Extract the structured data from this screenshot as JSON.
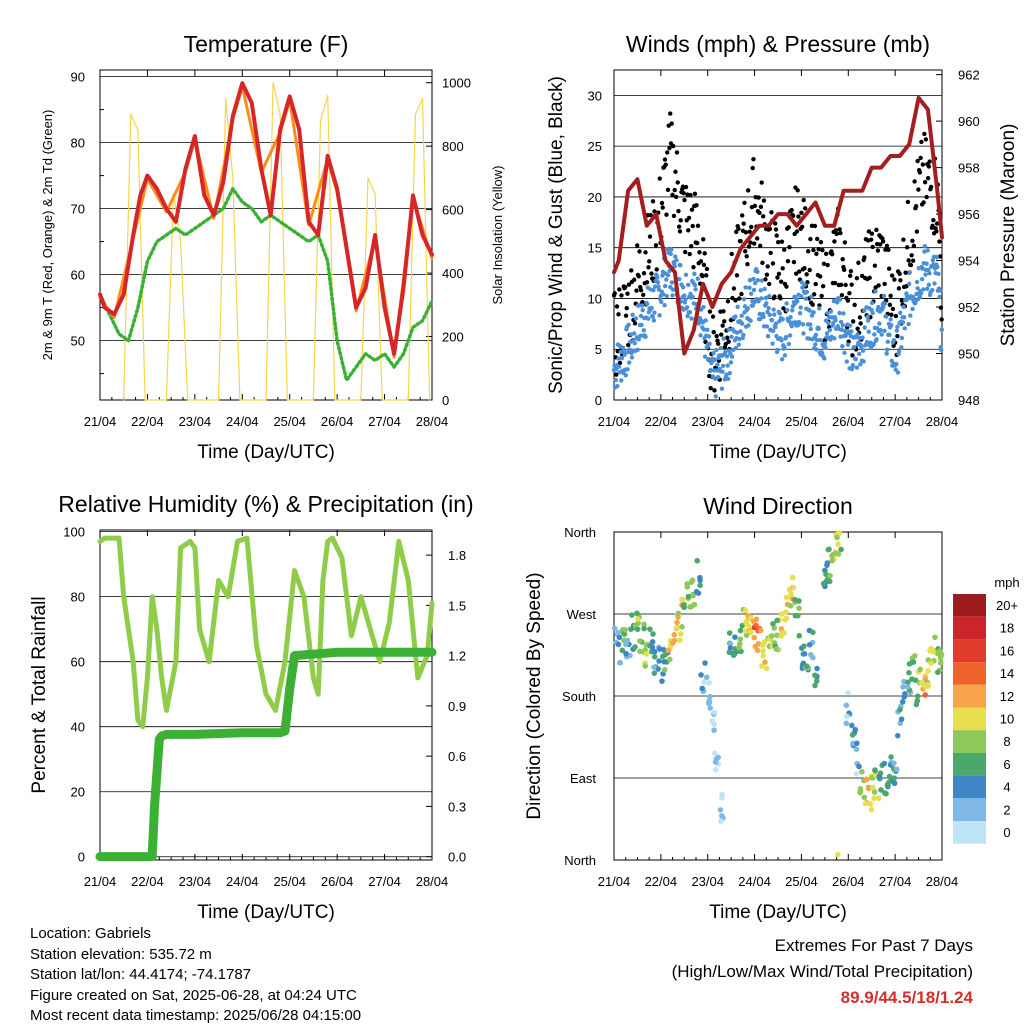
{
  "chart_data": [
    {
      "type": "line",
      "title": "Temperature (F)",
      "xlabel": "Time (Day/UTC)",
      "ylabel": "2m & 9m T (Red, Orange) & 2m Td (Green)",
      "y2label": "Solar Insolation (Yellow)",
      "x_ticks": [
        "21/04",
        "22/04",
        "23/04",
        "24/04",
        "25/04",
        "26/04",
        "27/04",
        "28/04"
      ],
      "ylim": [
        41,
        91
      ],
      "y_ticks": [
        50,
        60,
        70,
        80,
        90
      ],
      "y2lim": [
        0,
        1040
      ],
      "y2_ticks": [
        0,
        200,
        400,
        600,
        800,
        1000
      ],
      "grid": true,
      "series": [
        {
          "name": "2m T",
          "color": "#d62728",
          "x": [
            0,
            0.1,
            0.3,
            0.5,
            0.7,
            0.85,
            1.0,
            1.2,
            1.4,
            1.6,
            1.8,
            2.0,
            2.2,
            2.4,
            2.6,
            2.8,
            3.0,
            3.2,
            3.4,
            3.6,
            3.8,
            4.0,
            4.2,
            4.4,
            4.6,
            4.8,
            5.0,
            5.2,
            5.4,
            5.6,
            5.8,
            6.0,
            6.2,
            6.4,
            6.6,
            6.8,
            7.0
          ],
          "values": [
            57,
            55,
            54,
            57,
            66,
            72,
            75,
            73,
            70,
            68,
            76,
            81,
            72,
            69,
            74,
            84,
            89,
            86,
            76,
            69,
            82,
            87,
            82,
            68,
            66,
            78,
            73,
            64,
            55,
            58,
            66,
            55,
            48,
            58,
            72,
            66,
            63
          ]
        },
        {
          "name": "9m T",
          "color": "#ff8c1a",
          "x": [
            0,
            0.3,
            0.7,
            1.0,
            1.4,
            1.8,
            2.0,
            2.4,
            2.8,
            3.0,
            3.4,
            3.8,
            4.0,
            4.4,
            4.8,
            5.0,
            5.4,
            5.8,
            6.2,
            6.6,
            7.0
          ],
          "values": [
            56.5,
            53.5,
            65.5,
            74.5,
            69.5,
            75.5,
            80.5,
            68.5,
            83.5,
            88.5,
            75.5,
            81.5,
            86.5,
            67.5,
            77.5,
            72.5,
            54.5,
            65.5,
            47.5,
            71.5,
            62.5
          ]
        },
        {
          "name": "2m Td",
          "color": "#3cb034",
          "x": [
            0,
            0.2,
            0.4,
            0.6,
            0.8,
            1.0,
            1.2,
            1.4,
            1.6,
            1.8,
            2.0,
            2.2,
            2.4,
            2.6,
            2.8,
            3.0,
            3.2,
            3.4,
            3.6,
            3.8,
            4.0,
            4.2,
            4.4,
            4.6,
            4.8,
            5.0,
            5.2,
            5.4,
            5.6,
            5.8,
            6.0,
            6.2,
            6.4,
            6.6,
            6.8,
            7.0
          ],
          "values": [
            57,
            54,
            51,
            50,
            55,
            62,
            65,
            66,
            67,
            66,
            67,
            68,
            69,
            70,
            73,
            71,
            70,
            68,
            69,
            68,
            67,
            66,
            65,
            66,
            62,
            50,
            44,
            46,
            48,
            47,
            48,
            46,
            48,
            52,
            53,
            56
          ]
        },
        {
          "name": "Solar Insolation",
          "color": "#f5d54c",
          "axis": "y2",
          "x": [
            0.5,
            0.65,
            0.8,
            0.95,
            1.4,
            1.55,
            1.7,
            1.85,
            2.5,
            2.65,
            2.8,
            2.95,
            3.5,
            3.65,
            3.8,
            3.95,
            4.5,
            4.65,
            4.8,
            4.95,
            5.5,
            5.65,
            5.8,
            5.95,
            6.5,
            6.65,
            6.8,
            6.95
          ],
          "values": [
            0,
            900,
            850,
            0,
            0,
            650,
            500,
            0,
            0,
            950,
            700,
            0,
            0,
            1000,
            900,
            0,
            0,
            880,
            960,
            0,
            0,
            700,
            650,
            0,
            0,
            900,
            950,
            0
          ]
        }
      ]
    },
    {
      "type": "scatter",
      "title": "Winds (mph) & Pressure (mb)",
      "xlabel": "Time (Day/UTC)",
      "ylabel": "Sonic/Prop Wind & Gust (Blue, Black)",
      "y2label": "Station Pressure (Maroon)",
      "x_ticks": [
        "21/04",
        "22/04",
        "23/04",
        "24/04",
        "25/04",
        "26/04",
        "27/04",
        "28/04"
      ],
      "ylim": [
        0,
        32.5
      ],
      "y_ticks": [
        0,
        5,
        10,
        15,
        20,
        25,
        30
      ],
      "y2lim": [
        948,
        962.2
      ],
      "y2_ticks": [
        948,
        950,
        952,
        954,
        956,
        958,
        960,
        962
      ],
      "grid": true,
      "series": [
        {
          "name": "Gust",
          "color": "#000000",
          "x": [
            0,
            0.3,
            0.6,
            0.9,
            1.2,
            1.5,
            1.8,
            2.1,
            2.4,
            2.7,
            3.0,
            3.3,
            3.6,
            3.9,
            4.2,
            4.5,
            4.8,
            5.1,
            5.4,
            5.7,
            6.0,
            6.3,
            6.6,
            6.9,
            7.0
          ],
          "values": [
            6,
            9,
            13,
            16,
            24,
            18,
            16,
            4,
            8,
            14,
            20,
            15,
            12,
            17,
            14,
            10,
            15,
            8,
            12,
            14,
            8,
            16,
            22,
            20,
            10
          ]
        },
        {
          "name": "Wind",
          "color": "#4a90d9",
          "x": [
            0,
            0.3,
            0.6,
            0.9,
            1.2,
            1.5,
            1.8,
            2.1,
            2.4,
            2.7,
            3.0,
            3.3,
            3.6,
            3.9,
            4.2,
            4.5,
            4.8,
            5.1,
            5.4,
            5.7,
            6.0,
            6.3,
            6.6,
            6.9,
            7.0
          ],
          "values": [
            3,
            5,
            8,
            10,
            13,
            11,
            10,
            2,
            4,
            8,
            11,
            8,
            6,
            10,
            8,
            6,
            9,
            4,
            7,
            9,
            4,
            10,
            13,
            12,
            6
          ]
        },
        {
          "name": "Station Pressure",
          "color": "#a31f1f",
          "axis": "y2",
          "x": [
            0,
            0.1,
            0.3,
            0.5,
            0.7,
            0.9,
            1.1,
            1.3,
            1.5,
            1.7,
            1.9,
            2.1,
            2.3,
            2.5,
            2.7,
            2.9,
            3.1,
            3.3,
            3.5,
            3.7,
            3.9,
            4.1,
            4.3,
            4.5,
            4.7,
            4.9,
            5.1,
            5.3,
            5.5,
            5.7,
            5.9,
            6.1,
            6.3,
            6.5,
            6.7,
            6.9,
            7.0
          ],
          "values": [
            953.5,
            954,
            957,
            957.5,
            955.5,
            956,
            954,
            953.5,
            950,
            951,
            953,
            952,
            953,
            953.5,
            954.5,
            955,
            955.5,
            955.5,
            956,
            956,
            955.5,
            956,
            956.5,
            955.5,
            955.5,
            957,
            957,
            957,
            958,
            958,
            958.5,
            958.5,
            959,
            961,
            960.5,
            957,
            955
          ]
        }
      ]
    },
    {
      "type": "line",
      "title": "Relative Humidity (%) & Precipitation (in)",
      "xlabel": "Time (Day/UTC)",
      "ylabel": "Percent & Total Rainfall",
      "x_ticks": [
        "21/04",
        "22/04",
        "23/04",
        "24/04",
        "25/04",
        "26/04",
        "27/04",
        "28/04"
      ],
      "ylim": [
        -1,
        100.5
      ],
      "y_ticks": [
        0,
        20,
        40,
        60,
        80,
        100
      ],
      "y2lim": [
        -0.02,
        1.95
      ],
      "y2_ticks": [
        "0.0",
        "0.3",
        "0.6",
        "0.9",
        "1.2",
        "1.5",
        "1.8"
      ],
      "grid": true,
      "series": [
        {
          "name": "Relative Humidity",
          "color": "#8fcc4a",
          "x": [
            0,
            0.1,
            0.4,
            0.5,
            0.7,
            0.8,
            0.9,
            1.0,
            1.1,
            1.2,
            1.3,
            1.4,
            1.6,
            1.7,
            1.9,
            2.0,
            2.1,
            2.3,
            2.5,
            2.7,
            2.9,
            3.1,
            3.3,
            3.5,
            3.7,
            3.9,
            4.1,
            4.3,
            4.5,
            4.6,
            4.7,
            4.8,
            4.9,
            5.1,
            5.3,
            5.5,
            5.7,
            5.9,
            6.1,
            6.3,
            6.5,
            6.7,
            6.9,
            7.0
          ],
          "values": [
            97,
            98,
            98,
            80,
            60,
            42,
            40,
            55,
            80,
            70,
            55,
            45,
            60,
            95,
            97,
            95,
            70,
            60,
            85,
            80,
            97,
            98,
            65,
            50,
            45,
            60,
            88,
            80,
            55,
            50,
            85,
            97,
            98,
            92,
            68,
            80,
            70,
            60,
            72,
            97,
            85,
            55,
            62,
            78
          ]
        },
        {
          "name": "Total Precipitation",
          "color": "#3cb034",
          "axis": "y2",
          "x": [
            0,
            1.1,
            1.15,
            1.2,
            1.25,
            1.3,
            1.4,
            2.0,
            3.0,
            3.8,
            3.9,
            4.0,
            4.1,
            5.0,
            6.0,
            7.0
          ],
          "values": [
            0,
            0,
            0.3,
            0.5,
            0.7,
            0.72,
            0.73,
            0.73,
            0.74,
            0.74,
            0.75,
            1.0,
            1.2,
            1.22,
            1.22,
            1.22
          ]
        }
      ]
    },
    {
      "type": "scatter",
      "title": "Wind Direction",
      "xlabel": "Time (Day/UTC)",
      "ylabel": "Direction (Colored By Speed)",
      "x_ticks": [
        "21/04",
        "22/04",
        "23/04",
        "24/04",
        "25/04",
        "26/04",
        "27/04",
        "28/04"
      ],
      "y_ticks": [
        "North",
        "West",
        "South",
        "East",
        "North"
      ],
      "y_values": [
        360,
        270,
        180,
        90,
        0
      ],
      "legend_title": "mph",
      "legend_labels": [
        "20+",
        "18",
        "16",
        "14",
        "12",
        "10",
        "8",
        "6",
        "4",
        "2",
        "0"
      ],
      "legend_colors": [
        "#9c1c1c",
        "#c9252a",
        "#e03c2d",
        "#f0642c",
        "#f8a44a",
        "#e8df4f",
        "#8cc85a",
        "#4aa86a",
        "#3e86c4",
        "#7fb8e5",
        "#bfe3f7"
      ],
      "points": [
        [
          0.0,
          238,
          4
        ],
        [
          0.1,
          235,
          5
        ],
        [
          0.2,
          242,
          7
        ],
        [
          0.3,
          228,
          3
        ],
        [
          0.4,
          250,
          6
        ],
        [
          0.5,
          262,
          8
        ],
        [
          0.6,
          245,
          7
        ],
        [
          0.7,
          230,
          9
        ],
        [
          0.8,
          240,
          6
        ],
        [
          0.9,
          222,
          5
        ],
        [
          1.0,
          215,
          4
        ],
        [
          1.1,
          225,
          6
        ],
        [
          1.2,
          240,
          10
        ],
        [
          1.3,
          250,
          12
        ],
        [
          1.4,
          260,
          11
        ],
        [
          1.5,
          275,
          9
        ],
        [
          1.6,
          290,
          8
        ],
        [
          1.7,
          300,
          7
        ],
        [
          1.8,
          310,
          6
        ],
        [
          1.9,
          200,
          3
        ],
        [
          2.0,
          190,
          2
        ],
        [
          2.1,
          150,
          1
        ],
        [
          2.2,
          100,
          1
        ],
        [
          2.3,
          60,
          1
        ],
        [
          2.5,
          230,
          5
        ],
        [
          2.6,
          225,
          6
        ],
        [
          2.7,
          240,
          8
        ],
        [
          2.8,
          260,
          9
        ],
        [
          2.9,
          255,
          12
        ],
        [
          3.0,
          248,
          14
        ],
        [
          3.1,
          238,
          13
        ],
        [
          3.2,
          225,
          11
        ],
        [
          3.3,
          230,
          10
        ],
        [
          3.4,
          240,
          9
        ],
        [
          3.5,
          250,
          8
        ],
        [
          3.6,
          265,
          10
        ],
        [
          3.7,
          280,
          12
        ],
        [
          3.8,
          290,
          11
        ],
        [
          3.9,
          270,
          8
        ],
        [
          4.0,
          230,
          5
        ],
        [
          4.1,
          220,
          6
        ],
        [
          4.2,
          240,
          4
        ],
        [
          4.3,
          200,
          5
        ],
        [
          4.5,
          310,
          5
        ],
        [
          4.6,
          325,
          7
        ],
        [
          4.7,
          340,
          10
        ],
        [
          4.8,
          350,
          9
        ],
        [
          5.0,
          170,
          2
        ],
        [
          5.1,
          140,
          4
        ],
        [
          5.2,
          110,
          3
        ],
        [
          5.3,
          80,
          9
        ],
        [
          5.4,
          70,
          11
        ],
        [
          5.5,
          75,
          10
        ],
        [
          5.6,
          80,
          8
        ],
        [
          5.7,
          85,
          7
        ],
        [
          5.8,
          90,
          6
        ],
        [
          5.9,
          95,
          5
        ],
        [
          6.0,
          100,
          4
        ],
        [
          6.1,
          150,
          4
        ],
        [
          6.2,
          180,
          3
        ],
        [
          6.3,
          200,
          5
        ],
        [
          6.4,
          210,
          7
        ],
        [
          6.5,
          190,
          9
        ],
        [
          6.6,
          200,
          12
        ],
        [
          6.7,
          210,
          10
        ],
        [
          6.8,
          215,
          9
        ],
        [
          6.9,
          225,
          8
        ],
        [
          7.0,
          230,
          7
        ]
      ]
    }
  ],
  "info": {
    "location": "Location: Gabriels",
    "elevation": "Station elevation: 535.72 m",
    "latlon": "Station lat/lon: 44.4174; -74.1787",
    "created": "Figure created on Sat, 2025-06-28, at 04:24 UTC",
    "recent": "Most recent data timestamp: 2025/06/28 04:15:00"
  },
  "extremes": {
    "title": "Extremes For Past 7 Days",
    "subtitle": "(High/Low/Max Wind/Total Precipitation)",
    "values": "89.9/44.5/18/1.24"
  }
}
